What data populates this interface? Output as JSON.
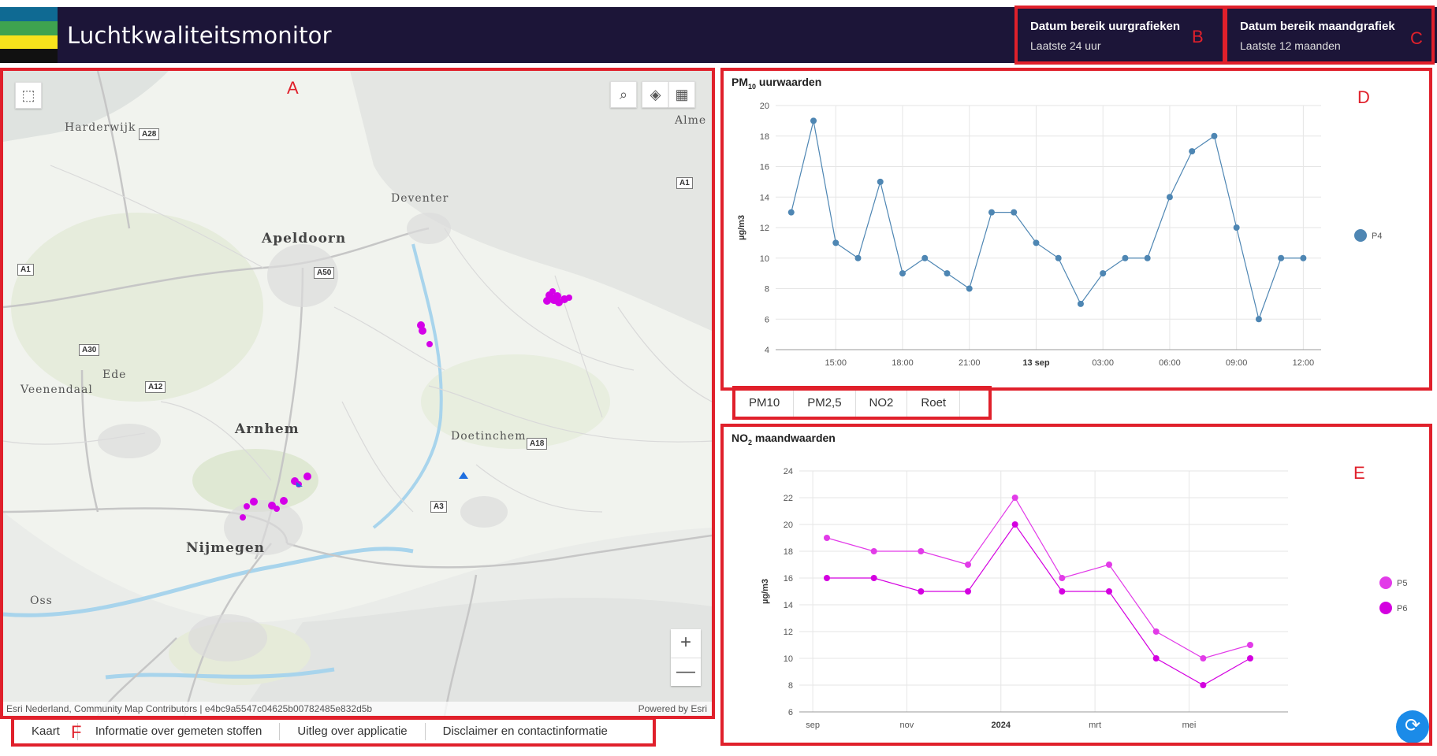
{
  "header": {
    "title": "Luchtkwaliteitsmonitor",
    "flag_colors": [
      "#0f6a93",
      "#3ea34f",
      "#f7e21c",
      "#111111"
    ],
    "hourly_range": {
      "label": "Datum bereik uurgrafieken",
      "value": "Laatste 24 uur"
    },
    "monthly_range": {
      "label": "Datum bereik maandgrafiek",
      "value": "Laatste 12 maanden"
    }
  },
  "annotations": {
    "A": "A",
    "B": "B",
    "C": "C",
    "D": "D",
    "E": "E",
    "F": "F"
  },
  "map": {
    "labels": {
      "harderwijk": "Harderwijk",
      "almere": "Alme",
      "deventer": "Deventer",
      "apeldoorn": "Apeldoorn",
      "ede": "Ede",
      "veenendaal": "Veenendaal",
      "arnhem": "Arnhem",
      "doetinchem": "Doetinchem",
      "nijmegen": "Nijmegen",
      "oss": "Oss"
    },
    "roads": {
      "a28": "A28",
      "a1_east": "A1",
      "a1_west": "A1",
      "a50": "A50",
      "a30": "A30",
      "a12": "A12",
      "a18": "A18",
      "a3": "A3"
    },
    "attribution": "Esri Nederland, Community Map Contributors | e4bc9a5547c04625b00782485e832d5b",
    "powered_by": "Powered by Esri",
    "marker_color": "#d400e8",
    "sensor_arrow_color": "#1f6fe0",
    "buttons": {
      "select": "select-icon",
      "search": "search-icon",
      "layers": "layers-icon",
      "qr": "qr-icon",
      "zoom_in": "+",
      "zoom_out": "—"
    }
  },
  "bottom_tabs": [
    "Kaart",
    "Informatie over gemeten stoffen",
    "Uitleg over applicatie",
    "Disclaimer en contactinformatie"
  ],
  "pm_tabs": [
    "PM10",
    "PM2,5",
    "NO2",
    "Roet"
  ],
  "chart_pm10": {
    "title_main": "PM",
    "title_sub": "10",
    "title_rest": " uurwaarden"
  },
  "chart_no2": {
    "title_main": "NO",
    "title_sub": "2",
    "title_rest": " maandwaarden"
  },
  "chart_data": [
    {
      "type": "line",
      "title": "PM10 uurwaarden",
      "ylabel": "µg/m3",
      "ylim": [
        4,
        20
      ],
      "yticks": [
        4,
        6,
        8,
        10,
        12,
        14,
        16,
        18,
        20
      ],
      "xticks": [
        "15:00",
        "18:00",
        "21:00",
        "13 sep",
        "03:00",
        "06:00",
        "09:00",
        "12:00"
      ],
      "xtick_bold": "13 sep",
      "x_hours": [
        13,
        14,
        15,
        16,
        17,
        18,
        19,
        20,
        21,
        22,
        23,
        24,
        25,
        26,
        27,
        28,
        29,
        30,
        31,
        32,
        33,
        34,
        35,
        36
      ],
      "series": [
        {
          "name": "P4",
          "color": "#4e86b3",
          "values": [
            13,
            19,
            11,
            10,
            15,
            9,
            10,
            9,
            8,
            13,
            13,
            11,
            10,
            7,
            9,
            10,
            10,
            14,
            17,
            18,
            12,
            6,
            10,
            10
          ]
        }
      ],
      "legend_position": "right",
      "grid": true
    },
    {
      "type": "line",
      "title": "NO2 maandwaarden",
      "ylabel": "µg/m3",
      "ylim": [
        6,
        24
      ],
      "yticks": [
        6,
        8,
        10,
        12,
        14,
        16,
        18,
        20,
        22,
        24
      ],
      "xticks": [
        "sep",
        "nov",
        "2024",
        "mrt",
        "mei"
      ],
      "xtick_bold": "2024",
      "x_months": [
        "2023-09",
        "2023-10",
        "2023-11",
        "2023-12",
        "2024-01",
        "2024-02",
        "2024-03",
        "2024-04",
        "2024-05",
        "2024-06"
      ],
      "series": [
        {
          "name": "P5",
          "color": "#e23be8",
          "values": [
            19,
            18,
            18,
            17,
            22,
            16,
            17,
            12,
            10,
            11
          ]
        },
        {
          "name": "P6",
          "color": "#d400e0",
          "values": [
            16,
            16,
            15,
            15,
            20,
            15,
            15,
            10,
            8,
            10
          ]
        }
      ],
      "legend_position": "right",
      "grid": true
    }
  ],
  "refresh_icon": "refresh-icon"
}
